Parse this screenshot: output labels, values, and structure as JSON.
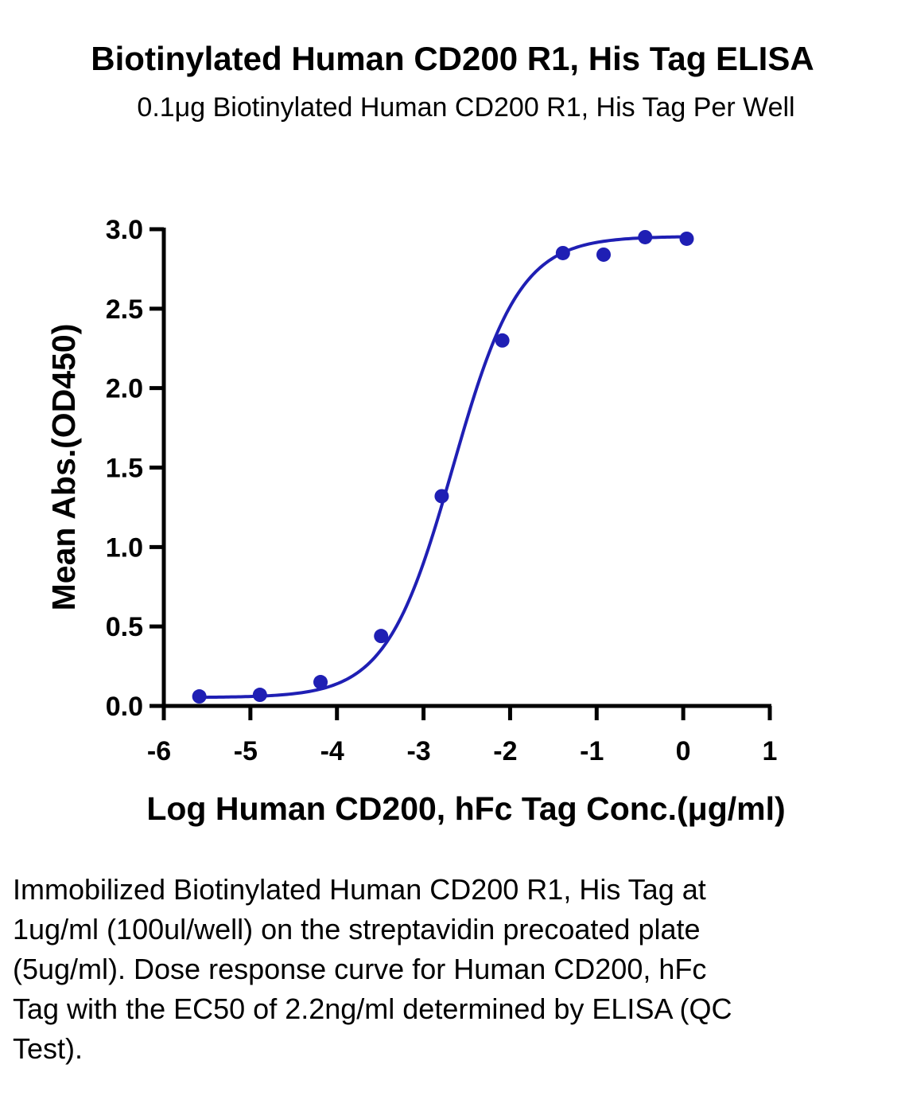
{
  "chart_data": {
    "type": "scatter",
    "title": "Biotinylated Human CD200 R1, His Tag ELISA",
    "subtitle": "0.1μg Biotinylated Human CD200 R1, His Tag Per Well",
    "xlabel": "Log Human CD200, hFc Tag Conc.(μg/ml)",
    "ylabel": "Mean Abs.(OD450)",
    "xlim": [
      -6,
      1
    ],
    "ylim": [
      0,
      3
    ],
    "x_ticks": [
      "-6",
      "-5",
      "-4",
      "-3",
      "-2",
      "-1",
      "0",
      "1"
    ],
    "y_ticks": [
      "0.0",
      "0.5",
      "1.0",
      "1.5",
      "2.0",
      "2.5",
      "3.0"
    ],
    "grid": false,
    "series": [
      {
        "color": "#1f1fb4",
        "points": [
          {
            "x": -5.59,
            "y": 0.06
          },
          {
            "x": -4.89,
            "y": 0.07
          },
          {
            "x": -4.19,
            "y": 0.15
          },
          {
            "x": -3.49,
            "y": 0.44
          },
          {
            "x": -2.79,
            "y": 1.32
          },
          {
            "x": -2.09,
            "y": 2.3
          },
          {
            "x": -1.39,
            "y": 2.85
          },
          {
            "x": -0.92,
            "y": 2.84
          },
          {
            "x": -0.44,
            "y": 2.95
          },
          {
            "x": 0.04,
            "y": 2.94
          }
        ],
        "fit_curve": {
          "bottom": 0.053,
          "top": 2.955,
          "log_ec50": -2.66,
          "hill_slope": 1.13
        }
      }
    ]
  },
  "caption": "Immobilized Biotinylated Human CD200 R1, His Tag at 1ug/ml (100ul/well) on the streptavidin precoated plate (5ug/ml). Dose response curve for Human CD200, hFc Tag with the EC50 of 2.2ng/ml determined by ELISA (QC Test)."
}
